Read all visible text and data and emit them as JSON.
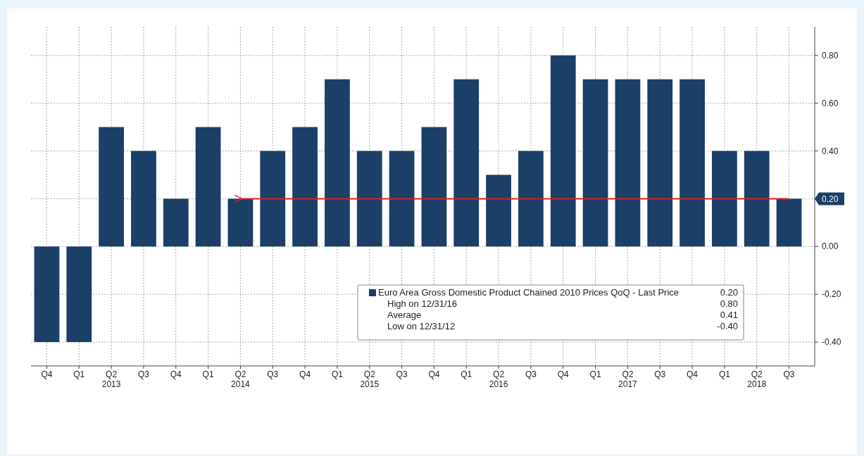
{
  "chart_data": {
    "type": "bar",
    "categories": [
      "Q4",
      "Q1",
      "Q2\n2013",
      "Q3",
      "Q4",
      "Q1",
      "Q2\n2014",
      "Q3",
      "Q4",
      "Q1",
      "Q2\n2015",
      "Q3",
      "Q4",
      "Q1",
      "Q2\n2016",
      "Q3",
      "Q4",
      "Q1",
      "Q2\n2017",
      "Q3",
      "Q4",
      "Q1",
      "Q2\n2018",
      "Q3"
    ],
    "series": [
      {
        "name": "Euro Area Gross Domestic Product Chained 2010 Prices QoQ - Last Price",
        "color": "#1b3f66",
        "values": [
          -0.4,
          -0.4,
          0.5,
          0.4,
          0.2,
          0.5,
          0.2,
          0.4,
          0.5,
          0.7,
          0.4,
          0.4,
          0.5,
          0.7,
          0.3,
          0.4,
          0.8,
          0.7,
          0.7,
          0.7,
          0.7,
          0.4,
          0.4,
          0.2
        ]
      }
    ],
    "ylim": [
      -0.5,
      0.92
    ],
    "yticks": [
      {
        "value": -0.4,
        "label": "-0.40"
      },
      {
        "value": -0.2,
        "label": "-0.20"
      },
      {
        "value": 0,
        "label": "0.00"
      },
      {
        "value": 0.2,
        "label": "0.20"
      },
      {
        "value": 0.4,
        "label": "0.40"
      },
      {
        "value": 0.6,
        "label": "0.60"
      },
      {
        "value": 0.8,
        "label": "0.80"
      }
    ],
    "grid": true,
    "legend": "bottom right",
    "ref_lines": [
      {
        "axis": "y",
        "value": 0.2,
        "color": "#e02020"
      }
    ],
    "annotations": [
      "0.20",
      "High on 12/31/16",
      "0.80",
      "Average",
      "0.41",
      "Low on 12/31/12",
      "-0.40"
    ]
  }
}
